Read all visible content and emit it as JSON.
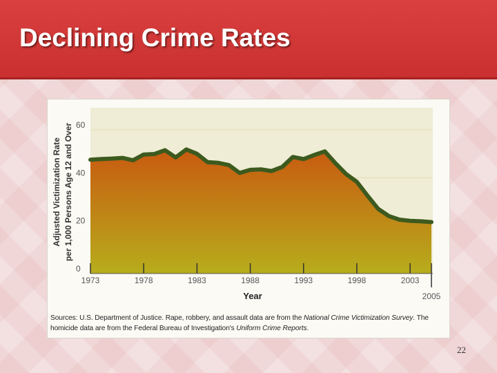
{
  "slide": {
    "title": "Declining Crime Rates",
    "page_number": "22",
    "sources": {
      "prefix": "Sources: U.S. Department of Justice. Rape, robbery, and assault data are from the ",
      "survey": "National Crime Victimization Survey",
      "middle": ". The homicide data are from the Federal Bureau of Investigation's ",
      "reports": "Uniform Crime Reports",
      "suffix": "."
    }
  },
  "colors": {
    "header": "#d23a39",
    "area_top": "#c85a10",
    "area_bottom": "#b7ad1c",
    "line": "#3d5a1e",
    "grid": "#e9e6c7"
  },
  "chart_data": {
    "type": "area",
    "title": "",
    "xlabel": "Year",
    "ylabel_line1": "Adjusted Victimization Rate",
    "ylabel_line2": "per 1,000 Persons Age 12 and Over",
    "xlim": [
      1973,
      2005
    ],
    "ylim": [
      0,
      60
    ],
    "x_ticks": [
      1973,
      1978,
      1983,
      1988,
      1993,
      1998,
      2003,
      2005
    ],
    "x_tick_labels": [
      "1973",
      "1978",
      "1983",
      "1988",
      "1993",
      "1998",
      "2003",
      "2005"
    ],
    "y_ticks": [
      0,
      20,
      40,
      60
    ],
    "y_tick_labels": [
      "0",
      "20",
      "40",
      "60"
    ],
    "grid": true,
    "series": [
      {
        "x": [
          1973,
          1974,
          1975,
          1976,
          1977,
          1978,
          1979,
          1980,
          1981,
          1982,
          1983,
          1984,
          1985,
          1986,
          1987,
          1988,
          1989,
          1990,
          1991,
          1992,
          1993,
          1994,
          1995,
          1996,
          1997,
          1998,
          1999,
          2000,
          2001,
          2002,
          2003,
          2004,
          2005
        ],
        "values": [
          47.5,
          47.8,
          48,
          48.3,
          47.3,
          49.7,
          49.9,
          51.5,
          48.5,
          51.8,
          50,
          46.5,
          46.2,
          45.3,
          42,
          43.3,
          43.5,
          42.8,
          44.5,
          48.7,
          47.8,
          49.5,
          51,
          46,
          41.5,
          38.3,
          32.5,
          27,
          24,
          22.5,
          22,
          21.8,
          21.5
        ]
      }
    ]
  }
}
